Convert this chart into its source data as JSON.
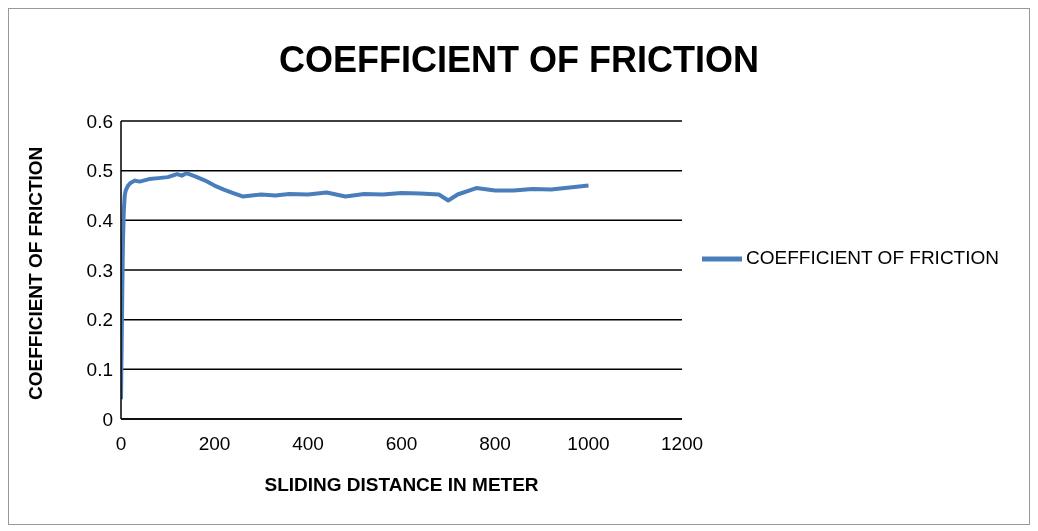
{
  "chart_data": {
    "type": "line",
    "title": "COEFFICIENT OF FRICTION",
    "xlabel": "SLIDING DISTANCE IN METER",
    "ylabel": "COEFFICIENT OF FRICTION",
    "x": [
      0,
      2,
      4,
      6,
      8,
      10,
      15,
      20,
      30,
      40,
      60,
      80,
      100,
      120,
      130,
      140,
      160,
      180,
      200,
      220,
      240,
      260,
      280,
      300,
      330,
      360,
      400,
      440,
      480,
      520,
      560,
      600,
      640,
      680,
      700,
      720,
      760,
      800,
      840,
      880,
      920,
      960,
      1000
    ],
    "series": [
      {
        "name": "COEFFICIENT OF FRICTION",
        "color": "#4a7ebb",
        "values": [
          0.04,
          0.2,
          0.35,
          0.42,
          0.45,
          0.46,
          0.47,
          0.475,
          0.48,
          0.478,
          0.483,
          0.485,
          0.487,
          0.493,
          0.49,
          0.495,
          0.488,
          0.48,
          0.47,
          0.462,
          0.455,
          0.448,
          0.45,
          0.452,
          0.45,
          0.453,
          0.452,
          0.456,
          0.448,
          0.453,
          0.452,
          0.455,
          0.454,
          0.452,
          0.44,
          0.452,
          0.465,
          0.46,
          0.46,
          0.463,
          0.462,
          0.466,
          0.47
        ]
      }
    ],
    "xlim": [
      0,
      1200
    ],
    "xticks": [
      0,
      200,
      400,
      600,
      800,
      1000,
      1200
    ],
    "ylim": [
      0,
      0.6
    ],
    "yticks": [
      0,
      0.1,
      0.2,
      0.3,
      0.4,
      0.5,
      0.6
    ],
    "grid": "y",
    "legend": "right",
    "marker": "none",
    "line_style": "solid"
  }
}
